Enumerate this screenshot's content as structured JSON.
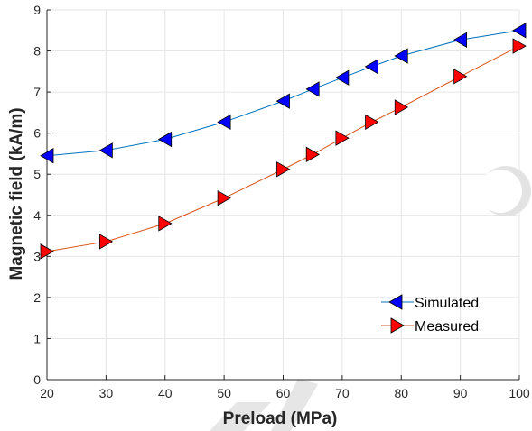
{
  "chart_data": {
    "type": "line",
    "title": "",
    "xlabel": "Preload (MPa)",
    "ylabel": "Magnetic field (kA/m)",
    "xlim": [
      20,
      100
    ],
    "ylim": [
      0,
      9
    ],
    "xticks": [
      20,
      30,
      40,
      50,
      60,
      70,
      80,
      90,
      100
    ],
    "yticks": [
      0,
      1,
      2,
      3,
      4,
      5,
      6,
      7,
      8,
      9
    ],
    "grid": true,
    "legend_position": "bottom-right",
    "series": [
      {
        "name": "Simulated",
        "color": "#0072BD",
        "marker": "left-triangle",
        "marker_color": "#0000FF",
        "x": [
          20,
          30,
          40,
          50,
          60,
          65,
          70,
          75,
          80,
          90,
          100
        ],
        "y": [
          5.45,
          5.58,
          5.85,
          6.27,
          6.78,
          7.07,
          7.35,
          7.62,
          7.88,
          8.27,
          8.5
        ]
      },
      {
        "name": "Measured",
        "color": "#D95319",
        "marker": "right-triangle",
        "marker_color": "#FF0000",
        "x": [
          20,
          30,
          40,
          50,
          60,
          65,
          70,
          75,
          80,
          90,
          100
        ],
        "y": [
          3.12,
          3.36,
          3.8,
          4.42,
          5.12,
          5.48,
          5.88,
          6.27,
          6.63,
          7.38,
          8.12
        ]
      }
    ]
  }
}
